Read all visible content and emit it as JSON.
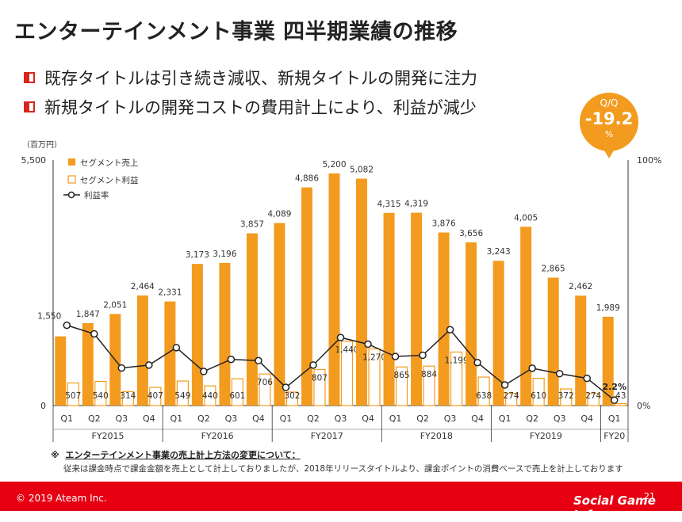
{
  "header": {
    "title": "エンターテインメント事業 四半期業績の推移",
    "bullets": [
      "既存タイトルは引き続き減収、新規タイトルの開発に注力",
      "新規タイトルの開発コストの費用計上により、利益が減少"
    ]
  },
  "callout": {
    "label": "Q/Q",
    "value": "-19.2",
    "unit": "%"
  },
  "chart_data": {
    "type": "bar",
    "unit_label": "（百万円）",
    "ylim": [
      0,
      5500
    ],
    "y_ticks": [
      "5,500",
      "0"
    ],
    "y2_ticks": [
      "100%",
      "0%"
    ],
    "legend": [
      "セグメント売上",
      "セグメント利益",
      "利益率"
    ],
    "categories": [
      "Q1",
      "Q2",
      "Q3",
      "Q4",
      "Q1",
      "Q2",
      "Q3",
      "Q4",
      "Q1",
      "Q2",
      "Q3",
      "Q4",
      "Q1",
      "Q2",
      "Q3",
      "Q4",
      "Q1",
      "Q2",
      "Q3",
      "Q4",
      "Q1"
    ],
    "groups": [
      {
        "label": "FY2015",
        "count": 4
      },
      {
        "label": "FY2016",
        "count": 4
      },
      {
        "label": "FY2017",
        "count": 4
      },
      {
        "label": "FY2018",
        "count": 4
      },
      {
        "label": "FY2019",
        "count": 4
      },
      {
        "label": "FY20",
        "count": 1
      }
    ],
    "series": [
      {
        "name": "セグメント売上",
        "values": [
          1550,
          1847,
          2051,
          2464,
          2331,
          3173,
          3196,
          3857,
          4089,
          4886,
          5200,
          5082,
          4315,
          4319,
          3876,
          3656,
          3243,
          4005,
          2865,
          2462,
          1989
        ],
        "labels": [
          "1,550",
          "1,847",
          "2,051",
          "2,464",
          "2,331",
          "3,173",
          "3,196",
          "3,857",
          "4,089",
          "4,886",
          "5,200",
          "5,082",
          "4,315",
          "4,319",
          "3,876",
          "3,656",
          "3,243",
          "4,005",
          "2,865",
          "2,462",
          "1,989"
        ]
      },
      {
        "name": "セグメント利益",
        "values": [
          507,
          540,
          314,
          407,
          549,
          440,
          601,
          706,
          302,
          807,
          1440,
          1270,
          865,
          884,
          1199,
          638,
          274,
          610,
          372,
          274,
          43
        ],
        "labels": [
          "507",
          "540",
          "314",
          "407",
          "549",
          "440",
          "601",
          "706",
          "302",
          "807",
          "1,440",
          "1,270",
          "865",
          "884",
          "1,199",
          "638",
          "274",
          "610",
          "372",
          "274",
          "43"
        ]
      },
      {
        "name": "利益率",
        "values": [
          32.7,
          29.2,
          15.3,
          16.5,
          23.6,
          13.9,
          18.8,
          18.3,
          7.4,
          16.5,
          27.7,
          25.0,
          20.0,
          20.5,
          30.9,
          17.5,
          8.4,
          15.2,
          13.0,
          11.1,
          2.2
        ],
        "visible_labels": {
          "20": "2.2%"
        }
      }
    ],
    "colors": {
      "sales": "#f39b1e",
      "profit_fill": "#ffffff",
      "profit_stroke": "#f39b1e",
      "rate": "#222222"
    }
  },
  "notes": {
    "heading": "エンターテインメント事業の売上計上方法の変更について：",
    "body": "従来は課金時点で課金金額を売上として計上しておりましたが、2018年リリースタイトルより、課金ポイントの消費ベースで売上を計上しております"
  },
  "footer": {
    "copyright": "© 2019 Ateam Inc.",
    "page": "21",
    "brand": "Social Game Info"
  }
}
